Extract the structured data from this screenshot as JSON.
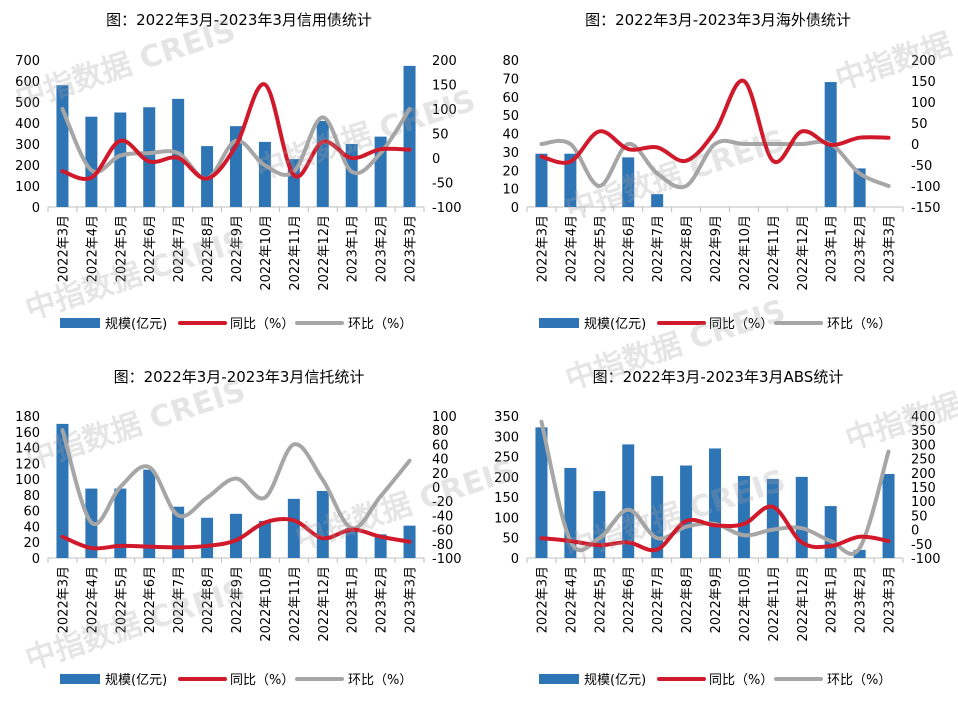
{
  "watermark": "中指数据 CREIS",
  "legend": {
    "bar": "规模(亿元)",
    "yoy": "同比（%）",
    "mom": "环比（%）"
  },
  "colors": {
    "bar": "#2e75b6",
    "yoy": "#d0192b",
    "mom": "#a6a6a6"
  },
  "chart_data": [
    {
      "type": "bar+line",
      "title": "图：2022年3月-2023年3月信用债统计",
      "categories": [
        "2022年3月",
        "2022年4月",
        "2022年5月",
        "2022年6月",
        "2022年7月",
        "2022年8月",
        "2022年9月",
        "2022年10月",
        "2022年11月",
        "2022年12月",
        "2023年1月",
        "2023年2月",
        "2023年3月"
      ],
      "left_axis": {
        "min": 0,
        "max": 700,
        "step": 100
      },
      "right_axis": {
        "min": -100,
        "max": 200,
        "step": 50
      },
      "series": [
        {
          "name": "规模(亿元)",
          "type": "bar",
          "axis": "left",
          "values": [
            580,
            430,
            450,
            475,
            515,
            290,
            385,
            310,
            228,
            410,
            300,
            335,
            672
          ]
        },
        {
          "name": "同比（%）",
          "type": "line",
          "axis": "right",
          "values": [
            -27,
            -40,
            35,
            -7,
            0,
            -42,
            25,
            150,
            -35,
            33,
            0,
            18,
            17
          ]
        },
        {
          "name": "环比（%）",
          "type": "line",
          "axis": "right",
          "values": [
            100,
            -25,
            5,
            10,
            10,
            -42,
            35,
            -15,
            -28,
            83,
            -28,
            10,
            100
          ]
        }
      ],
      "legend_position": "bottom",
      "grid": false
    },
    {
      "type": "bar+line",
      "title": "图：2022年3月-2023年3月海外债统计",
      "categories": [
        "2022年3月",
        "2022年4月",
        "2022年5月",
        "2022年6月",
        "2022年7月",
        "2022年8月",
        "2022年9月",
        "2022年10月",
        "2022年11月",
        "2022年12月",
        "2023年1月",
        "2023年2月",
        "2023年3月"
      ],
      "left_axis": {
        "min": 0,
        "max": 80,
        "step": 10
      },
      "right_axis": {
        "min": -150,
        "max": 200,
        "step": 50
      },
      "series": [
        {
          "name": "规模(亿元)",
          "type": "bar",
          "axis": "left",
          "values": [
            29,
            29,
            0,
            27,
            7,
            0,
            0,
            0,
            0,
            0,
            68,
            21,
            0
          ]
        },
        {
          "name": "同比（%）",
          "type": "line",
          "axis": "right",
          "values": [
            -30,
            -42,
            30,
            -12,
            -8,
            -40,
            30,
            150,
            -40,
            30,
            -2,
            15,
            15
          ]
        },
        {
          "name": "环比（%）",
          "type": "line",
          "axis": "right",
          "values": [
            0,
            0,
            -100,
            0,
            -70,
            -100,
            0,
            0,
            0,
            0,
            0,
            -70,
            -100
          ]
        }
      ],
      "legend_position": "bottom",
      "grid": false
    },
    {
      "type": "bar+line",
      "title": "图：2022年3月-2023年3月信托统计",
      "categories": [
        "2022年3月",
        "2022年4月",
        "2022年5月",
        "2022年6月",
        "2022年7月",
        "2022年8月",
        "2022年9月",
        "2022年10月",
        "2022年11月",
        "2022年12月",
        "2023年1月",
        "2023年2月",
        "2023年3月"
      ],
      "left_axis": {
        "min": 0,
        "max": 180,
        "step": 20
      },
      "right_axis": {
        "min": -100,
        "max": 100,
        "step": 20
      },
      "series": [
        {
          "name": "规模(亿元)",
          "type": "bar",
          "axis": "left",
          "values": [
            170,
            88,
            88,
            112,
            65,
            51,
            56,
            47,
            75,
            85,
            38,
            30,
            41
          ]
        },
        {
          "name": "同比（%）",
          "type": "line",
          "axis": "right",
          "values": [
            -70,
            -86,
            -83,
            -84,
            -85,
            -83,
            -75,
            -50,
            -47,
            -72,
            -60,
            -70,
            -77
          ]
        },
        {
          "name": "环比（%）",
          "type": "line",
          "axis": "right",
          "values": [
            80,
            -50,
            0,
            28,
            -40,
            -15,
            12,
            -15,
            60,
            10,
            -58,
            -13,
            37
          ]
        }
      ],
      "legend_position": "bottom",
      "grid": false
    },
    {
      "type": "bar+line",
      "title": "图：2022年3月-2023年3月ABS统计",
      "categories": [
        "2022年3月",
        "2022年4月",
        "2022年5月",
        "2022年6月",
        "2022年7月",
        "2022年8月",
        "2022年9月",
        "2022年10月",
        "2022年11月",
        "2022年12月",
        "2023年1月",
        "2023年2月",
        "2023年3月"
      ],
      "left_axis": {
        "min": 0,
        "max": 350,
        "step": 50
      },
      "right_axis": {
        "min": -100,
        "max": 400,
        "step": 50
      },
      "series": [
        {
          "name": "规模(亿元)",
          "type": "bar",
          "axis": "left",
          "values": [
            322,
            222,
            165,
            280,
            202,
            228,
            270,
            202,
            195,
            200,
            128,
            20,
            207
          ]
        },
        {
          "name": "同比（%）",
          "type": "line",
          "axis": "right",
          "values": [
            -30,
            -40,
            -55,
            -45,
            -70,
            30,
            15,
            20,
            80,
            -45,
            -58,
            -25,
            -40
          ]
        },
        {
          "name": "环比（%）",
          "type": "line",
          "axis": "right",
          "values": [
            380,
            -40,
            -30,
            70,
            -30,
            10,
            20,
            -20,
            0,
            5,
            -40,
            -65,
            275
          ]
        }
      ],
      "legend_position": "bottom",
      "grid": false
    }
  ]
}
